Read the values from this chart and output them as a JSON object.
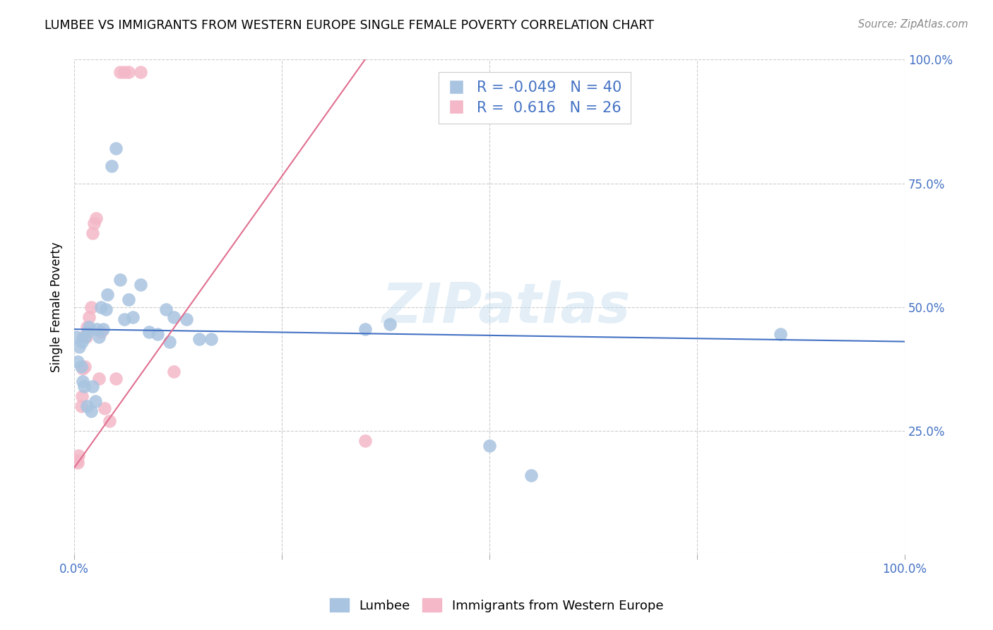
{
  "title": "LUMBEE VS IMMIGRANTS FROM WESTERN EUROPE SINGLE FEMALE POVERTY CORRELATION CHART",
  "source": "Source: ZipAtlas.com",
  "ylabel": "Single Female Poverty",
  "legend_lumbee": "Lumbee",
  "legend_immigrants": "Immigrants from Western Europe",
  "lumbee_R": "-0.049",
  "lumbee_N": "40",
  "immigrants_R": "0.616",
  "immigrants_N": "26",
  "xlim": [
    0,
    1
  ],
  "ylim": [
    0,
    1
  ],
  "lumbee_color": "#a8c4e0",
  "immigrants_color": "#f4b8c8",
  "lumbee_line_color": "#4472c4",
  "immigrants_line_color": "#e07090",
  "watermark": "ZIPatlas",
  "lumbee_x": [
    0.002,
    0.004,
    0.006,
    0.008,
    0.009,
    0.01,
    0.012,
    0.013,
    0.015,
    0.016,
    0.018,
    0.02,
    0.022,
    0.025,
    0.027,
    0.03,
    0.032,
    0.035,
    0.038,
    0.04,
    0.045,
    0.05,
    0.055,
    0.06,
    0.065,
    0.07,
    0.08,
    0.09,
    0.1,
    0.11,
    0.115,
    0.12,
    0.135,
    0.15,
    0.165,
    0.35,
    0.38,
    0.5,
    0.55,
    0.85
  ],
  "lumbee_y": [
    0.44,
    0.39,
    0.42,
    0.38,
    0.43,
    0.35,
    0.34,
    0.44,
    0.3,
    0.45,
    0.46,
    0.29,
    0.34,
    0.31,
    0.455,
    0.44,
    0.5,
    0.455,
    0.495,
    0.525,
    0.785,
    0.82,
    0.555,
    0.475,
    0.515,
    0.48,
    0.545,
    0.45,
    0.445,
    0.495,
    0.43,
    0.48,
    0.475,
    0.435,
    0.435,
    0.455,
    0.465,
    0.22,
    0.16,
    0.445
  ],
  "immigrants_x": [
    0.003,
    0.004,
    0.005,
    0.008,
    0.009,
    0.01,
    0.011,
    0.013,
    0.014,
    0.015,
    0.018,
    0.02,
    0.022,
    0.024,
    0.026,
    0.03,
    0.032,
    0.036,
    0.042,
    0.05,
    0.055,
    0.06,
    0.065,
    0.08,
    0.12,
    0.35
  ],
  "immigrants_y": [
    0.19,
    0.185,
    0.2,
    0.3,
    0.32,
    0.375,
    0.44,
    0.38,
    0.44,
    0.46,
    0.48,
    0.5,
    0.65,
    0.67,
    0.68,
    0.355,
    0.45,
    0.295,
    0.27,
    0.355,
    0.975,
    0.975,
    0.975,
    0.975,
    0.37,
    0.23
  ],
  "lumbee_line_x0": 0.0,
  "lumbee_line_x1": 1.0,
  "lumbee_line_y0": 0.455,
  "lumbee_line_y1": 0.43,
  "immigrants_line_x0": 0.0,
  "immigrants_line_x1": 0.35,
  "immigrants_line_y0": 0.175,
  "immigrants_line_y1": 1.0
}
